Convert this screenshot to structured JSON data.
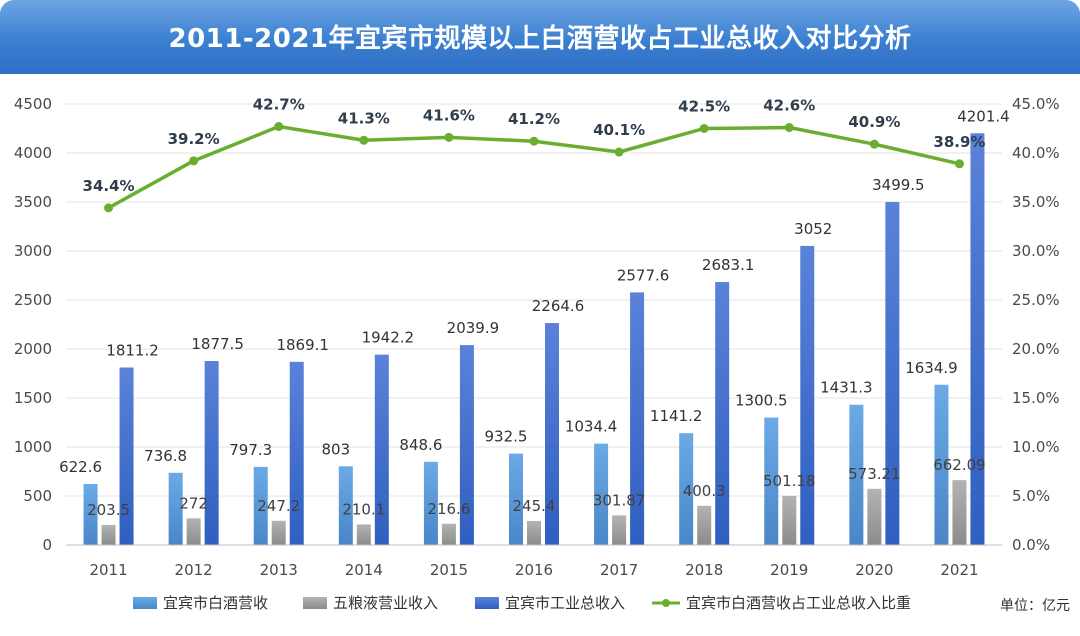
{
  "title": "2011-2021年宜宾市规模以上白酒营收占工业总收入对比分析",
  "unit_label": "单位：亿元",
  "colors": {
    "liquor_revenue": "#5b9bd5",
    "wuliangye": "#a5a5a5",
    "industrial_total": "#3f6fd0",
    "ratio_line": "#6aae2f"
  },
  "chart_data": {
    "type": "bar",
    "categories": [
      "2011",
      "2012",
      "2013",
      "2014",
      "2015",
      "2016",
      "2017",
      "2018",
      "2019",
      "2020",
      "2021"
    ],
    "ylim": [
      0,
      4500
    ],
    "yticks": [
      "0",
      "500",
      "1000",
      "1500",
      "2000",
      "2500",
      "3000",
      "3500",
      "4000",
      "4500"
    ],
    "y2lim": [
      0,
      45
    ],
    "y2ticks": [
      "0.0%",
      "5.0%",
      "10.0%",
      "15.0%",
      "20.0%",
      "25.0%",
      "30.0%",
      "35.0%",
      "40.0%",
      "45.0%"
    ],
    "series": [
      {
        "name": "宜宾市白酒营收",
        "type": "bar",
        "values": [
          622.6,
          736.8,
          797.3,
          803,
          848.6,
          932.5,
          1034.4,
          1141.2,
          1300.5,
          1431.3,
          1634.9
        ],
        "labels": [
          "622.6",
          "736.8",
          "797.3",
          "803",
          "848.6",
          "932.5",
          "1034.4",
          "1141.2",
          "1300.5",
          "1431.3",
          "1634.9"
        ]
      },
      {
        "name": "五粮液营业收入",
        "type": "bar",
        "values": [
          203.5,
          272,
          247.2,
          210.1,
          216.6,
          245.4,
          301.87,
          400.3,
          501.18,
          573.21,
          662.09
        ],
        "labels": [
          "203.5",
          "272",
          "247.2",
          "210.1",
          "216.6",
          "245.4",
          "301.87",
          "400.3",
          "501.18",
          "573.21",
          "662.09"
        ]
      },
      {
        "name": "宜宾市工业总收入",
        "type": "bar",
        "values": [
          1811.2,
          1877.5,
          1869.1,
          1942.2,
          2039.9,
          2264.6,
          2577.6,
          2683.1,
          3052,
          3499.5,
          4201.4
        ],
        "labels": [
          "1811.2",
          "1877.5",
          "1869.1",
          "1942.2",
          "2039.9",
          "2264.6",
          "2577.6",
          "2683.1",
          "3052",
          "3499.5",
          "4201.4"
        ]
      },
      {
        "name": "宜宾市白酒营收占工业总收入比重",
        "type": "line",
        "axis": "right",
        "values": [
          34.4,
          39.2,
          42.7,
          41.3,
          41.6,
          41.2,
          40.1,
          42.5,
          42.6,
          40.9,
          38.9
        ],
        "labels": [
          "34.4%",
          "39.2%",
          "42.7%",
          "41.3%",
          "41.6%",
          "41.2%",
          "40.1%",
          "42.5%",
          "42.6%",
          "40.9%",
          "38.9%"
        ]
      }
    ],
    "legend": "bottom",
    "grid": true
  }
}
